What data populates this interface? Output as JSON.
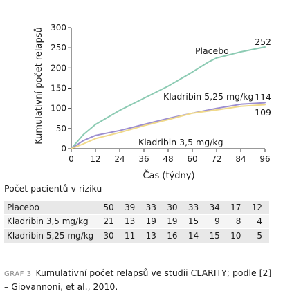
{
  "chart_data": {
    "type": "line",
    "xlabel": "Čas (týdny)",
    "ylabel": "Kumulativní počet relapsů",
    "xlim": [
      0,
      96
    ],
    "ylim": [
      0,
      300
    ],
    "xticks": [
      0,
      12,
      24,
      36,
      48,
      60,
      72,
      84,
      96
    ],
    "yticks": [
      0,
      50,
      100,
      150,
      200,
      250,
      300
    ],
    "grid": false,
    "series": [
      {
        "name": "Placebo",
        "color": "#8ccbb3",
        "end_label": "252",
        "x": [
          0,
          6,
          12,
          24,
          36,
          48,
          60,
          68,
          72,
          84,
          96
        ],
        "y": [
          0,
          35,
          60,
          95,
          125,
          155,
          190,
          215,
          225,
          240,
          252
        ]
      },
      {
        "name": "Kladribin 5,25 mg/kg",
        "color": "#9c8ed0",
        "end_label": "114",
        "x": [
          0,
          6,
          12,
          24,
          36,
          48,
          60,
          72,
          84,
          96
        ],
        "y": [
          0,
          20,
          33,
          45,
          60,
          75,
          88,
          100,
          110,
          114
        ]
      },
      {
        "name": "Kladribin 3,5 mg/kg",
        "color": "#f0d98a",
        "end_label": "109",
        "x": [
          0,
          6,
          12,
          24,
          36,
          48,
          60,
          72,
          84,
          96
        ],
        "y": [
          0,
          12,
          25,
          40,
          57,
          72,
          88,
          96,
          105,
          109
        ]
      }
    ]
  },
  "risk_table": {
    "title": "Počet pacientů v riziku",
    "rows": [
      {
        "name": "Placebo",
        "values": [
          "50",
          "39",
          "33",
          "30",
          "33",
          "34",
          "17",
          "12"
        ]
      },
      {
        "name": "Kladribin 3,5 mg/kg",
        "values": [
          "21",
          "13",
          "19",
          "19",
          "15",
          "9",
          "8",
          "4"
        ]
      },
      {
        "name": "Kladribin 5,25 mg/kg",
        "values": [
          "30",
          "11",
          "13",
          "16",
          "14",
          "15",
          "10",
          "5"
        ]
      }
    ]
  },
  "caption": {
    "label": "GRAF 3",
    "text": "Kumulativní počet relapsů ve studii CLARITY; podle [2] – Giovannoni, et al., 2010."
  }
}
